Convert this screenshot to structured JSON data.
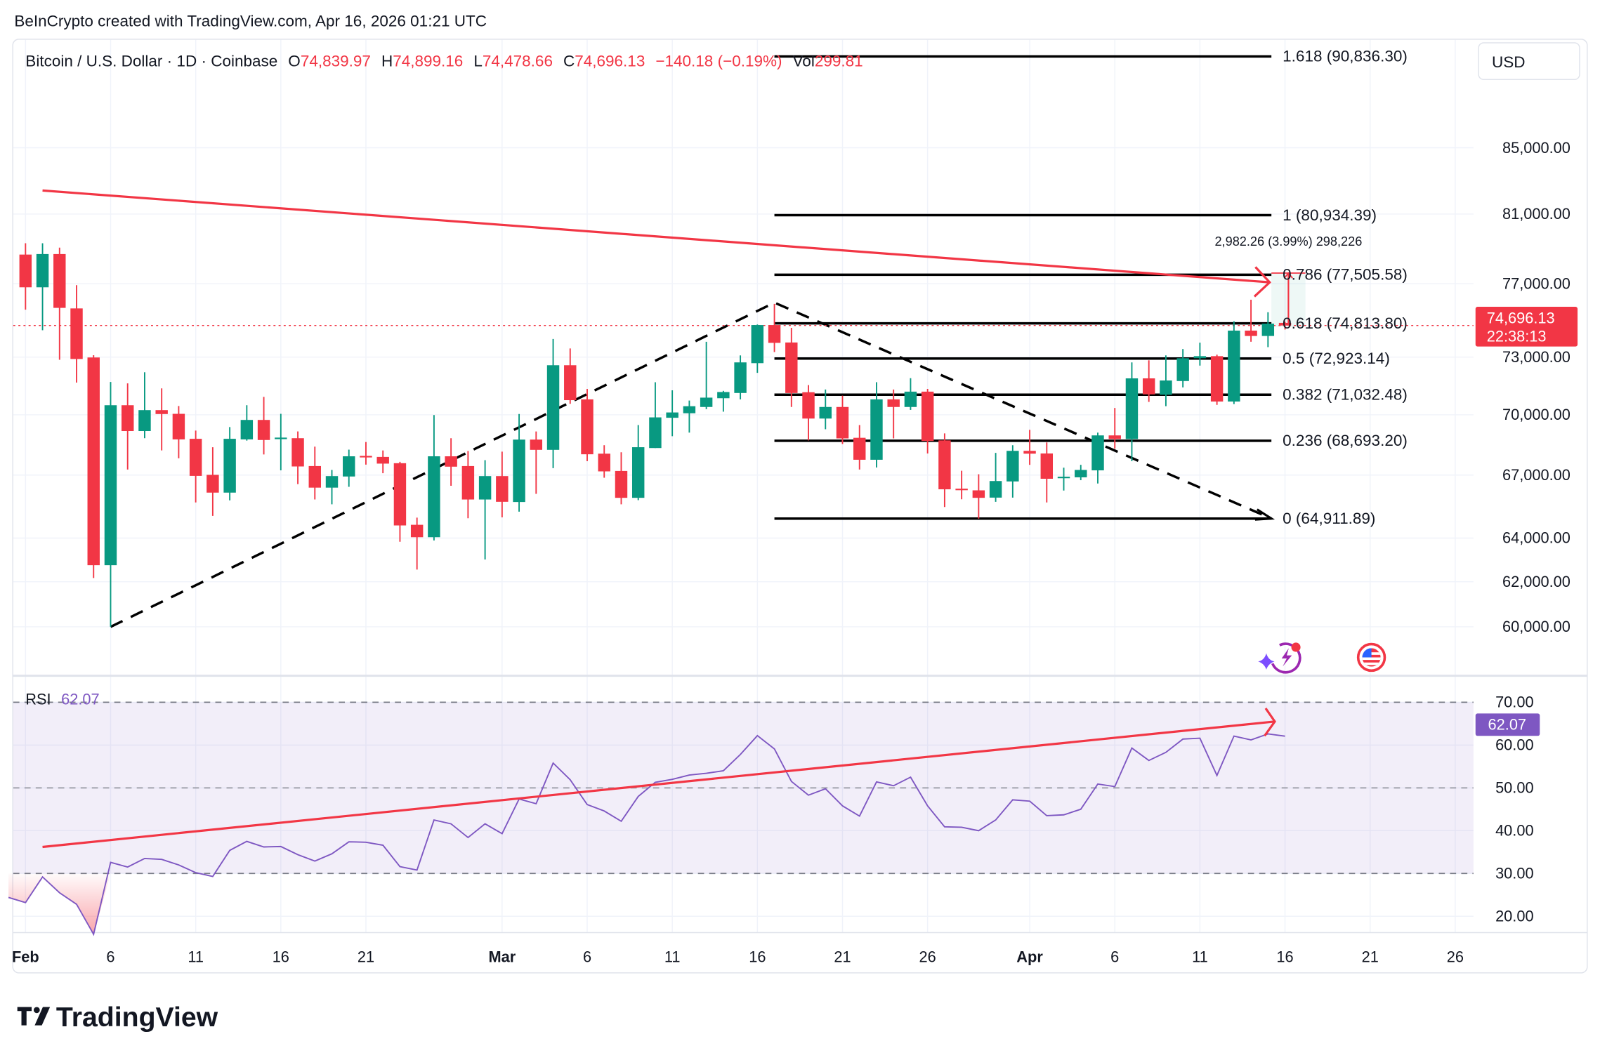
{
  "header": {
    "attribution": "BeInCrypto created with TradingView.com, Apr 16, 2026 01:21 UTC"
  },
  "legend": {
    "symbol": "Bitcoin / U.S. Dollar · 1D · Coinbase",
    "o_label": "O",
    "o": "74,839.97",
    "h_label": "H",
    "h": "74,899.16",
    "l_label": "L",
    "l": "74,478.66",
    "c_label": "C",
    "c": "74,696.13",
    "change": "−140.18 (−0.19%)",
    "vol_label": "Vol",
    "vol": "299.81"
  },
  "currency_button": "USD",
  "colors": {
    "up": "#089981",
    "down": "#F23645",
    "rsi": "#7E57C2",
    "trend": "#F23645",
    "drawing": "#000000"
  },
  "price_axis": {
    "scale": "log",
    "ticks": [
      "85,000.00",
      "81,000.00",
      "77,000.00",
      "73,000.00",
      "70,000.00",
      "67,000.00",
      "64,000.00",
      "62,000.00",
      "60,000.00"
    ],
    "tick_values": [
      85000,
      81000,
      77000,
      73000,
      70000,
      67000,
      64000,
      62000,
      60000
    ],
    "last_price": "74,696.13",
    "countdown": "22:38:13"
  },
  "time_axis": {
    "labels": [
      "Feb",
      "6",
      "11",
      "16",
      "21",
      "Mar",
      "6",
      "11",
      "16",
      "21",
      "26",
      "Apr",
      "6",
      "11",
      "16",
      "21",
      "26"
    ],
    "label_days": [
      0,
      5,
      10,
      15,
      20,
      28,
      33,
      38,
      43,
      48,
      53,
      59,
      64,
      69,
      74,
      79,
      84
    ]
  },
  "chart_data": {
    "type": "candlestick",
    "first_date": "Feb 1",
    "ohlc": [
      [
        78650,
        79300,
        75560,
        76800
      ],
      [
        76800,
        79300,
        74440,
        78680
      ],
      [
        78680,
        79050,
        72860,
        75660
      ],
      [
        75630,
        76920,
        71660,
        72900
      ],
      [
        72980,
        73100,
        62170,
        62750
      ],
      [
        62750,
        71690,
        60000,
        70490
      ],
      [
        70490,
        71620,
        67270,
        69180
      ],
      [
        69180,
        72200,
        68820,
        70240
      ],
      [
        70240,
        71360,
        68210,
        70040
      ],
      [
        70050,
        70450,
        67820,
        68760
      ],
      [
        68790,
        69200,
        65680,
        66960
      ],
      [
        67010,
        68370,
        65040,
        66150
      ],
      [
        66150,
        69380,
        65780,
        68790
      ],
      [
        68760,
        70490,
        68700,
        69740
      ],
      [
        69740,
        70920,
        68010,
        68730
      ],
      [
        68800,
        70050,
        67230,
        68850
      ],
      [
        68820,
        69160,
        66560,
        67420
      ],
      [
        67440,
        68400,
        65820,
        66390
      ],
      [
        66390,
        67250,
        65590,
        66950
      ],
      [
        66930,
        68250,
        66430,
        67920
      ],
      [
        67940,
        68630,
        67510,
        67880
      ],
      [
        67890,
        68210,
        67090,
        67560
      ],
      [
        67580,
        67650,
        63830,
        64590
      ],
      [
        64620,
        64960,
        62550,
        64040
      ],
      [
        64040,
        69990,
        63890,
        67920
      ],
      [
        67920,
        68820,
        66480,
        67410
      ],
      [
        67440,
        68180,
        64930,
        65820
      ],
      [
        65820,
        67730,
        63010,
        66950
      ],
      [
        66950,
        68150,
        64970,
        65710
      ],
      [
        65700,
        70040,
        65240,
        68750
      ],
      [
        68750,
        69160,
        66090,
        68240
      ],
      [
        68240,
        73970,
        67340,
        72570
      ],
      [
        72570,
        73460,
        70560,
        70750
      ],
      [
        70790,
        71330,
        67680,
        68020
      ],
      [
        68050,
        68470,
        66870,
        67180
      ],
      [
        67200,
        68120,
        65590,
        65900
      ],
      [
        65900,
        69480,
        65790,
        68370
      ],
      [
        68330,
        71680,
        68330,
        69870
      ],
      [
        69850,
        71260,
        68920,
        70120
      ],
      [
        70080,
        70730,
        69100,
        70440
      ],
      [
        70400,
        73820,
        70290,
        70880
      ],
      [
        70850,
        71230,
        70160,
        71170
      ],
      [
        71120,
        73090,
        70790,
        72720
      ],
      [
        72680,
        74750,
        72170,
        74720
      ],
      [
        74720,
        75880,
        73270,
        73760
      ],
      [
        73780,
        74570,
        70400,
        71120
      ],
      [
        71160,
        71530,
        68710,
        69810
      ],
      [
        69810,
        71300,
        69270,
        70400
      ],
      [
        70400,
        70980,
        68530,
        68810
      ],
      [
        68840,
        69480,
        67270,
        67750
      ],
      [
        67750,
        71680,
        67370,
        70790
      ],
      [
        70790,
        71300,
        68810,
        70400
      ],
      [
        70400,
        71890,
        70250,
        71190
      ],
      [
        71190,
        71330,
        68060,
        68680
      ],
      [
        68710,
        69060,
        65460,
        66310
      ],
      [
        66340,
        67210,
        65830,
        66300
      ],
      [
        66260,
        67040,
        64910,
        65900
      ],
      [
        65910,
        68090,
        65710,
        66710
      ],
      [
        66690,
        68470,
        65910,
        68190
      ],
      [
        68190,
        69240,
        67500,
        68050
      ],
      [
        68060,
        68610,
        65680,
        66820
      ],
      [
        66890,
        67360,
        66250,
        66920
      ],
      [
        66890,
        67500,
        66750,
        67250
      ],
      [
        67230,
        69100,
        66590,
        68960
      ],
      [
        68960,
        70350,
        68300,
        68780
      ],
      [
        68780,
        72720,
        67680,
        71880
      ],
      [
        71880,
        72830,
        70660,
        71050
      ],
      [
        71030,
        73090,
        70440,
        71770
      ],
      [
        71740,
        73430,
        71410,
        72940
      ],
      [
        72940,
        73770,
        72550,
        73050
      ],
      [
        73050,
        73130,
        70510,
        70680
      ],
      [
        70680,
        74930,
        70550,
        74420
      ],
      [
        74420,
        76110,
        73820,
        74130
      ],
      [
        74130,
        75420,
        73530,
        74800
      ],
      [
        74839.97,
        74899.16,
        74478.66,
        74696.13
      ]
    ],
    "rsi": {
      "label": "RSI",
      "value": "62.07",
      "first_date": "Jan 31",
      "values": [
        24.4,
        23.2,
        29.2,
        25.5,
        22.8,
        15.8,
        32.6,
        31.5,
        33.5,
        33.3,
        32.0,
        30.2,
        29.3,
        35.4,
        37.5,
        36.2,
        36.3,
        34.4,
        32.9,
        34.6,
        37.4,
        37.3,
        36.6,
        31.6,
        30.8,
        42.5,
        41.6,
        38.4,
        41.6,
        39.3,
        47.4,
        46.3,
        55.8,
        51.9,
        46.1,
        44.6,
        42.2,
        48.0,
        51.3,
        52.0,
        53.0,
        53.4,
        54.0,
        57.8,
        62.2,
        59.1,
        51.5,
        48.3,
        49.8,
        45.8,
        43.4,
        51.4,
        50.5,
        52.5,
        45.8,
        40.9,
        40.8,
        40.0,
        42.5,
        47.2,
        46.9,
        43.5,
        43.7,
        45.0,
        50.9,
        50.3,
        59.3,
        56.4,
        58.3,
        61.4,
        61.6,
        52.9,
        62.1,
        61.2,
        62.6,
        62.07
      ],
      "ticks": [
        "70.00",
        "60.00",
        "50.00",
        "40.00",
        "30.00",
        "20.00"
      ],
      "tick_values": [
        70,
        60,
        50,
        40,
        30,
        20
      ],
      "bands": {
        "upper": 70,
        "middle": 50,
        "lower": 30
      },
      "trendline": {
        "from": {
          "day": 1,
          "value": 36.2
        },
        "to": {
          "day": 73.4,
          "value": 65.5
        }
      }
    },
    "drawings": {
      "trendline": {
        "from": {
          "day": 1,
          "price": 82400
        },
        "to": {
          "day": 73.1,
          "price": 77080
        }
      },
      "dashed_path": [
        {
          "day": 5,
          "price": 60000
        },
        {
          "day": 44,
          "price": 75950
        },
        {
          "day": 73.2,
          "price": 64912
        }
      ],
      "fib_start_day": 44,
      "fib_end_day": 73.2,
      "fib_levels": [
        {
          "price": 90836.3,
          "label": "1.618 (90,836.30)"
        },
        {
          "price": 80934.39,
          "label": "1 (80,934.39)"
        },
        {
          "price": 77505.58,
          "label": "0.786 (77,505.58)"
        },
        {
          "price": 74813.8,
          "label": "0.618 (74,813.80)"
        },
        {
          "price": 72923.14,
          "label": "0.5 (72,923.14)"
        },
        {
          "price": 71032.48,
          "label": "0.382 (71,032.48)"
        },
        {
          "price": 68693.2,
          "label": "0.236 (68,693.20)"
        },
        {
          "price": 64911.89,
          "label": "0 (64,911.89)"
        }
      ],
      "price_range": {
        "from_day": 73.2,
        "to_day": 75.2,
        "low": 74620,
        "high": 77600,
        "label": "2,982.26 (3.99%) 298,226"
      }
    }
  },
  "icons": {
    "assistant": "sparkle-bolt-icon",
    "market": "us-flag-icon"
  },
  "footer": {
    "logo": "TradingView"
  }
}
